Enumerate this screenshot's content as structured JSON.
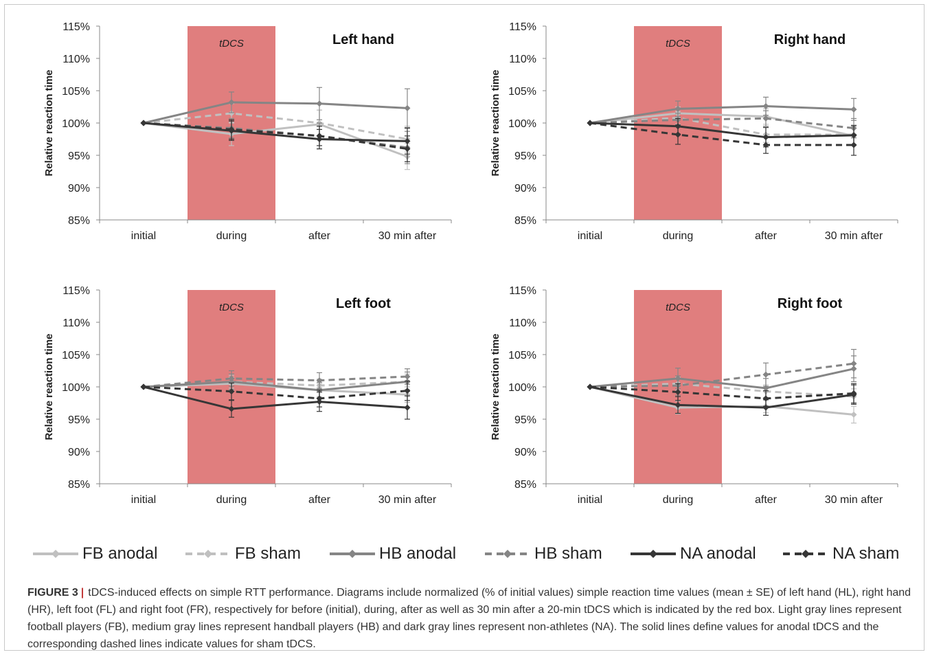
{
  "figure": {
    "label": "FIGURE 3",
    "separator": "|",
    "caption": "tDCS-induced effects on simple RTT performance. Diagrams include normalized (% of initial values) simple reaction time values (mean ± SE) of left hand (HL), right hand (HR), left foot (FL) and right foot (FR), respectively for before (initial), during, after as well as 30 min after a 20-min tDCS which is indicated by the red box. Light gray lines represent football players (FB), medium gray lines represent handball players (HB) and dark gray lines represent non-athletes (NA). The solid lines define values for anodal tDCS and the corresponding dashed lines indicate values for sham tDCS."
  },
  "colors": {
    "tdcs_box": "#e07e7e",
    "fb": "#c0c0c0",
    "hb": "#858585",
    "na": "#363636",
    "axis": "#888888"
  },
  "legend": [
    {
      "label": "FB anodal",
      "color": "#c0c0c0",
      "dashed": false
    },
    {
      "label": "FB sham",
      "color": "#c0c0c0",
      "dashed": true
    },
    {
      "label": "HB anodal",
      "color": "#858585",
      "dashed": false
    },
    {
      "label": "HB sham",
      "color": "#858585",
      "dashed": true
    },
    {
      "label": "NA anodal",
      "color": "#363636",
      "dashed": false
    },
    {
      "label": "NA sham",
      "color": "#363636",
      "dashed": true
    }
  ],
  "chart_data": [
    {
      "type": "line",
      "title": "Left hand",
      "band_label": "tDCS",
      "band_category": "during",
      "ylabel": "Relative reaction time",
      "xlabel": "",
      "categories": [
        "initial",
        "during",
        "after",
        "30 min after"
      ],
      "yticks": [
        "85%",
        "90%",
        "95%",
        "100%",
        "105%",
        "110%",
        "115%"
      ],
      "ylim": [
        85,
        115
      ],
      "series": [
        {
          "name": "FB anodal",
          "values": [
            100,
            98.3,
            99.8,
            94.8
          ],
          "err": [
            0,
            1.8,
            2.2,
            2.0
          ]
        },
        {
          "name": "FB sham",
          "values": [
            100,
            101.5,
            100.0,
            97.5
          ],
          "err": [
            0,
            1.5,
            2.0,
            2.0
          ]
        },
        {
          "name": "HB anodal",
          "values": [
            100,
            103.2,
            103.0,
            102.3
          ],
          "err": [
            0,
            1.6,
            2.5,
            3.0
          ]
        },
        {
          "name": "HB sham",
          "values": [
            100,
            99.2,
            98.0,
            96.2
          ],
          "err": [
            0,
            1.5,
            2.0,
            2.5
          ]
        },
        {
          "name": "NA anodal",
          "values": [
            100,
            98.8,
            97.5,
            97.2
          ],
          "err": [
            0,
            1.5,
            1.5,
            2.0
          ]
        },
        {
          "name": "NA sham",
          "values": [
            100,
            99.0,
            98.0,
            96.0
          ],
          "err": [
            0,
            1.5,
            1.5,
            2.0
          ]
        }
      ]
    },
    {
      "type": "line",
      "title": "Right hand",
      "band_label": "tDCS",
      "band_category": "during",
      "ylabel": "Relative reaction time",
      "xlabel": "",
      "categories": [
        "initial",
        "during",
        "after",
        "30 min after"
      ],
      "yticks": [
        "85%",
        "90%",
        "95%",
        "100%",
        "105%",
        "110%",
        "115%"
      ],
      "ylim": [
        85,
        115
      ],
      "series": [
        {
          "name": "FB anodal",
          "values": [
            100,
            101.5,
            101.0,
            98.0
          ],
          "err": [
            0,
            1.0,
            1.2,
            1.5
          ]
        },
        {
          "name": "FB sham",
          "values": [
            100,
            100.8,
            98.2,
            98.2
          ],
          "err": [
            0,
            1.0,
            1.2,
            1.5
          ]
        },
        {
          "name": "HB anodal",
          "values": [
            100,
            102.2,
            102.6,
            102.1
          ],
          "err": [
            0,
            1.2,
            1.4,
            1.7
          ]
        },
        {
          "name": "HB sham",
          "values": [
            100,
            100.5,
            100.7,
            99.2
          ],
          "err": [
            0,
            1.0,
            1.2,
            1.5
          ]
        },
        {
          "name": "NA anodal",
          "values": [
            100,
            99.5,
            97.8,
            98.1
          ],
          "err": [
            0,
            1.2,
            1.5,
            1.5
          ]
        },
        {
          "name": "NA sham",
          "values": [
            100,
            98.2,
            96.6,
            96.6
          ],
          "err": [
            0,
            1.5,
            1.3,
            1.6
          ]
        }
      ]
    },
    {
      "type": "line",
      "title": "Left foot",
      "band_label": "tDCS",
      "band_category": "during",
      "ylabel": "Relative reaction time",
      "xlabel": "",
      "categories": [
        "initial",
        "during",
        "after",
        "30 min after"
      ],
      "yticks": [
        "85%",
        "90%",
        "95%",
        "100%",
        "105%",
        "110%",
        "115%"
      ],
      "ylim": [
        85,
        115
      ],
      "series": [
        {
          "name": "FB anodal",
          "values": [
            100,
            100.5,
            99.5,
            98.8
          ],
          "err": [
            0,
            1.0,
            1.0,
            1.2
          ]
        },
        {
          "name": "FB sham",
          "values": [
            100,
            100.8,
            100.2,
            100.8
          ],
          "err": [
            0,
            1.0,
            1.0,
            1.2
          ]
        },
        {
          "name": "HB anodal",
          "values": [
            100,
            100.8,
            99.5,
            100.8
          ],
          "err": [
            0,
            1.2,
            1.2,
            1.5
          ]
        },
        {
          "name": "HB sham",
          "values": [
            100,
            101.3,
            101.0,
            101.6
          ],
          "err": [
            0,
            1.2,
            1.2,
            1.2
          ]
        },
        {
          "name": "NA anodal",
          "values": [
            100,
            96.6,
            97.7,
            96.8
          ],
          "err": [
            0,
            1.3,
            1.5,
            1.8
          ]
        },
        {
          "name": "NA sham",
          "values": [
            100,
            99.3,
            98.2,
            99.4
          ],
          "err": [
            0,
            1.3,
            1.3,
            1.5
          ]
        }
      ]
    },
    {
      "type": "line",
      "title": "Right foot",
      "band_label": "tDCS",
      "band_category": "during",
      "ylabel": "Relative reaction time",
      "xlabel": "",
      "categories": [
        "initial",
        "during",
        "after",
        "30 min after"
      ],
      "yticks": [
        "85%",
        "90%",
        "95%",
        "100%",
        "105%",
        "110%",
        "115%"
      ],
      "ylim": [
        85,
        115
      ],
      "series": [
        {
          "name": "FB anodal",
          "values": [
            100,
            96.8,
            97.0,
            95.7
          ],
          "err": [
            0,
            1.0,
            1.0,
            1.3
          ]
        },
        {
          "name": "FB sham",
          "values": [
            100,
            100.5,
            99.3,
            98.5
          ],
          "err": [
            0,
            1.0,
            1.0,
            1.2
          ]
        },
        {
          "name": "HB anodal",
          "values": [
            100,
            101.3,
            99.8,
            102.8
          ],
          "err": [
            0,
            1.6,
            1.5,
            2.0
          ]
        },
        {
          "name": "HB sham",
          "values": [
            100,
            100.2,
            101.9,
            103.6
          ],
          "err": [
            0,
            1.5,
            1.8,
            2.2
          ]
        },
        {
          "name": "NA anodal",
          "values": [
            100,
            97.2,
            96.8,
            98.8
          ],
          "err": [
            0,
            1.3,
            1.2,
            1.5
          ]
        },
        {
          "name": "NA sham",
          "values": [
            100,
            99.2,
            98.2,
            99.0
          ],
          "err": [
            0,
            1.3,
            1.2,
            1.5
          ]
        }
      ]
    }
  ]
}
